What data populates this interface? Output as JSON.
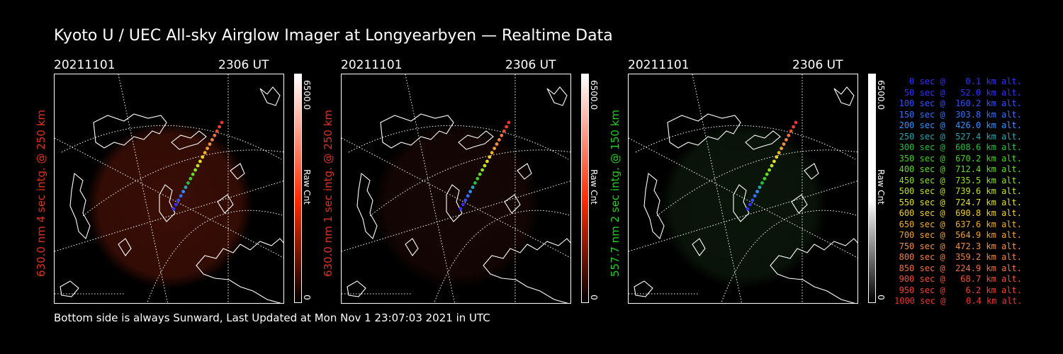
{
  "header": {
    "title": "Kyoto U / UEC All-sky Airglow Imager at Longyearbyen — Realtime Data"
  },
  "footer": {
    "text": "Bottom side is always Sunward, Last Updated at Mon Nov  1 23:07:03 2021 in UTC"
  },
  "panels": [
    {
      "date": "20211101",
      "time": "2306 UT",
      "label": "630.0 nm 4 sec intg. @ 250 km",
      "label_color": "#e0301e",
      "bar_color": "#ff2a00",
      "glow_color": "#3a0e06",
      "scale_max": "6500.0",
      "scale_min": "0",
      "unit": "Raw Cnt"
    },
    {
      "date": "20211101",
      "time": "2306 UT",
      "label": "630.0 nm 1 sec intg. @ 250 km",
      "label_color": "#e0301e",
      "bar_color": "#ff2a00",
      "glow_color": "#150604",
      "scale_max": "6500.0",
      "scale_min": "0",
      "unit": "Raw Cnt"
    },
    {
      "date": "20211101",
      "time": "2306 UT",
      "label": "557.7 nm 2 sec intg. @ 150 km",
      "label_color": "#22cc22",
      "bar_color": "#ffffff",
      "glow_color": "#0b160b",
      "scale_max": "6500.0",
      "scale_min": "0",
      "unit": "Raw Cnt"
    }
  ],
  "legend": [
    {
      "text": "0 sec @    0.1 km alt.",
      "color": "#3030ff"
    },
    {
      "text": "50 sec @   52.0 km alt.",
      "color": "#3030ff"
    },
    {
      "text": "100 sec @  160.2 km alt.",
      "color": "#3050ff"
    },
    {
      "text": "150 sec @  303.8 km alt.",
      "color": "#3070ff"
    },
    {
      "text": "200 sec @  426.0 km alt.",
      "color": "#3090ff"
    },
    {
      "text": "250 sec @  527.4 km alt.",
      "color": "#20a8b0"
    },
    {
      "text": "300 sec @  608.6 km alt.",
      "color": "#20c040"
    },
    {
      "text": "350 sec @  670.2 km alt.",
      "color": "#40d020"
    },
    {
      "text": "400 sec @  712.4 km alt.",
      "color": "#60dd20"
    },
    {
      "text": "450 sec @  735.5 km alt.",
      "color": "#90e020"
    },
    {
      "text": "500 sec @  739.6 km alt.",
      "color": "#c0e020"
    },
    {
      "text": "550 sec @  724.7 km alt.",
      "color": "#e0e020"
    },
    {
      "text": "600 sec @  690.8 km alt.",
      "color": "#f0d020"
    },
    {
      "text": "650 sec @  637.6 km alt.",
      "color": "#f0b020"
    },
    {
      "text": "700 sec @  564.9 km alt.",
      "color": "#f0a030"
    },
    {
      "text": "750 sec @  472.3 km alt.",
      "color": "#f09040"
    },
    {
      "text": "800 sec @  359.2 km alt.",
      "color": "#f08040"
    },
    {
      "text": "850 sec @  224.9 km alt.",
      "color": "#f07040"
    },
    {
      "text": "900 sec @   68.7 km alt.",
      "color": "#f05030"
    },
    {
      "text": "950 sec @    6.2 km alt.",
      "color": "#f04030"
    },
    {
      "text": "1000 sec @    0.4 km alt.",
      "color": "#f03030"
    }
  ]
}
